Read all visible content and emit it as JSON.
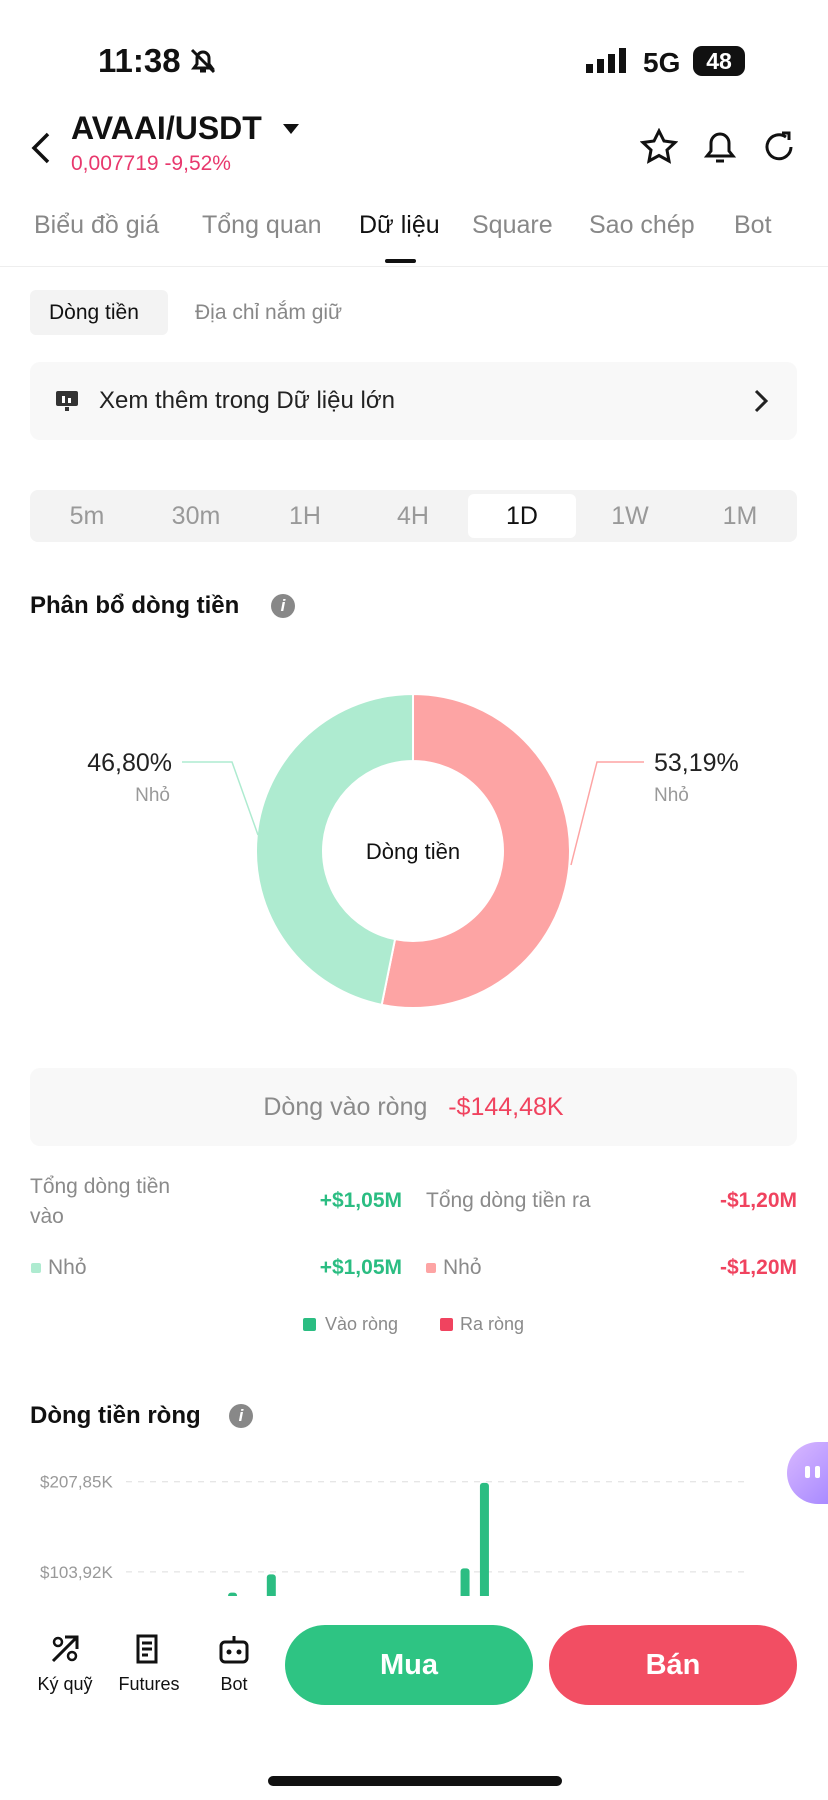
{
  "status_bar": {
    "time": "11:38",
    "network": "5G",
    "battery": "48"
  },
  "header": {
    "pair": "AVAAI/USDT",
    "price": "0,007719",
    "change": "-9,52%"
  },
  "tabs": {
    "items": [
      "Biểu đồ giá",
      "Tổng quan",
      "Dữ liệu",
      "Square",
      "Sao chép",
      "Bot"
    ],
    "active": 2
  },
  "subtabs": {
    "items": [
      "Dòng tiền",
      "Địa chỉ nắm giữ"
    ],
    "active": 0
  },
  "banner": "Xem thêm trong Dữ liệu lớn",
  "timeframes": {
    "items": [
      "5m",
      "30m",
      "1H",
      "4H",
      "1D",
      "1W",
      "1M"
    ],
    "active": 4
  },
  "chart_data": [
    {
      "type": "donut",
      "title": "Phân bổ dòng tiền",
      "center_label": "Dòng tiền",
      "categories": [
        "Nhỏ",
        "Nhỏ"
      ],
      "values": [
        46.8,
        53.19
      ],
      "value_labels": [
        "46,80%",
        "53,19%"
      ],
      "colors": [
        "#aeebd0",
        "#fda4a4"
      ]
    },
    {
      "type": "bar",
      "title": "Dòng tiền ròng",
      "categories": [
        null,
        null,
        null,
        null,
        null,
        null,
        null,
        null,
        null,
        null,
        null,
        null,
        null,
        null,
        null,
        null,
        null,
        null,
        null,
        null,
        null,
        null,
        null,
        null,
        null,
        null,
        null,
        null,
        null,
        null,
        null,
        null
      ],
      "values": [
        null,
        null,
        null,
        null,
        null,
        80000,
        null,
        101000,
        null,
        null,
        null,
        null,
        null,
        null,
        null,
        null,
        null,
        108000,
        206500,
        null,
        null,
        null,
        null,
        null,
        null,
        null,
        null,
        null,
        null,
        null,
        null,
        null
      ],
      "color": "#2bbd82",
      "ylim": [
        0,
        222500
      ],
      "yticks": [
        {
          "value": 103920,
          "label": "$103,92K"
        },
        {
          "value": 207850,
          "label": "$207,85K"
        }
      ],
      "grid": true
    }
  ],
  "net_flow": {
    "label": "Dòng vào ròng",
    "value": "-$144,48K"
  },
  "totals": {
    "inflow_label": "Tổng dòng tiền vào",
    "inflow_value": "+$1,05M",
    "outflow_label": "Tổng dòng tiền ra",
    "outflow_value": "-$1,20M",
    "inflow_small_label": "Nhỏ",
    "inflow_small_value": "+$1,05M",
    "outflow_small_label": "Nhỏ",
    "outflow_small_value": "-$1,20M"
  },
  "legend": [
    "Vào ròng",
    "Ra ròng"
  ],
  "bottom_nav": {
    "items": [
      "Ký quỹ",
      "Futures",
      "Bot"
    ],
    "buy": "Mua",
    "sell": "Bán"
  }
}
